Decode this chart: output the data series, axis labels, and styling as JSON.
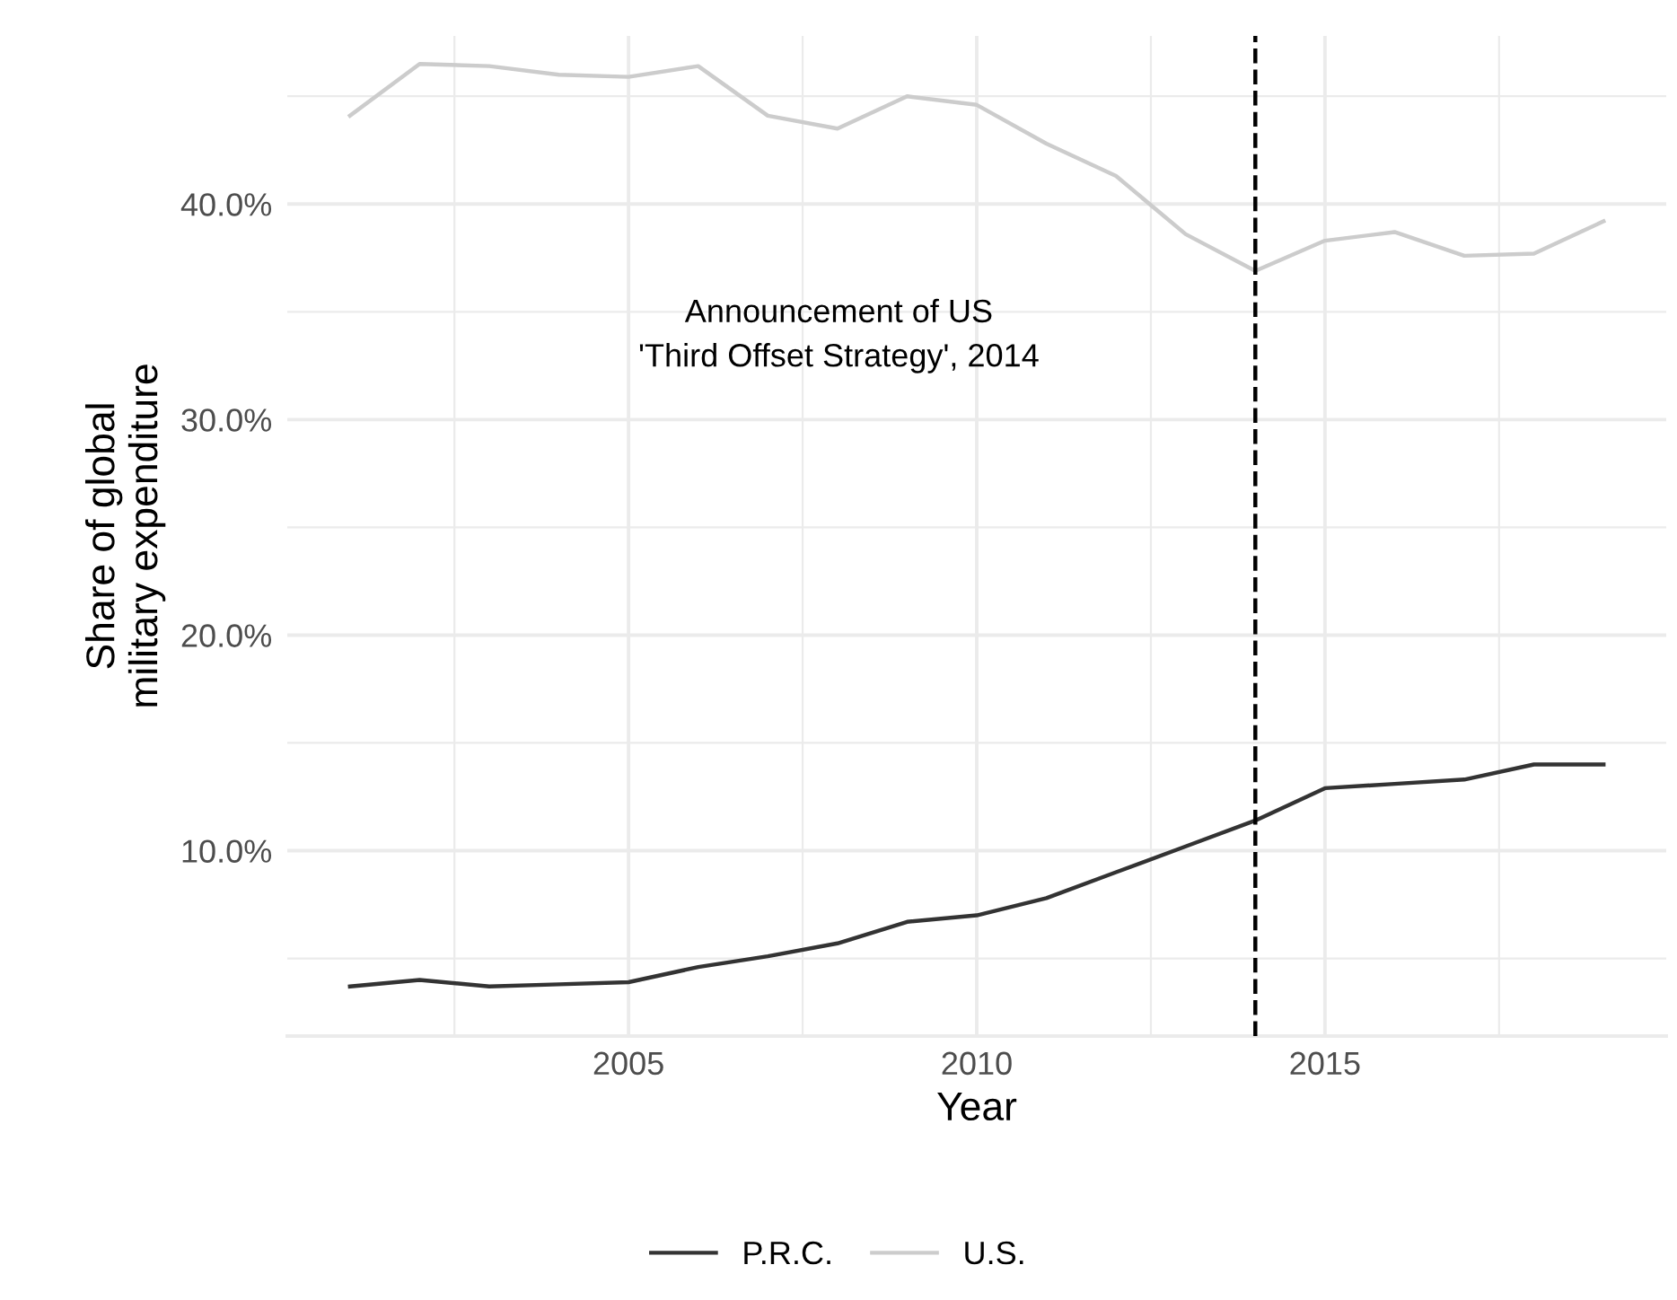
{
  "chart_data": {
    "type": "line",
    "xlabel": "Year",
    "ylabel": "Share of global\nmilitary expenditure",
    "x": [
      2001,
      2002,
      2003,
      2004,
      2005,
      2006,
      2007,
      2008,
      2009,
      2010,
      2011,
      2012,
      2013,
      2014,
      2015,
      2016,
      2017,
      2018,
      2019
    ],
    "series": [
      {
        "name": "P.R.C.",
        "color": "#333333",
        "values": [
          3.7,
          4.0,
          3.7,
          3.8,
          3.9,
          4.6,
          5.1,
          5.7,
          6.7,
          7.0,
          7.8,
          9.0,
          10.2,
          11.4,
          12.9,
          13.1,
          13.3,
          14.0,
          14.0
        ]
      },
      {
        "name": "U.S.",
        "color": "#cccccc",
        "values": [
          44.1,
          46.5,
          46.4,
          46.0,
          45.9,
          46.4,
          44.1,
          43.5,
          45.0,
          44.6,
          42.8,
          41.3,
          38.6,
          36.9,
          38.3,
          38.7,
          37.6,
          37.7,
          39.2
        ]
      }
    ],
    "xlim": [
      2000.1,
      2019.9
    ],
    "ylim": [
      1.4,
      47.8
    ],
    "xticks": [
      {
        "value": 2002.5,
        "label": null
      },
      2005,
      {
        "value": 2007.5,
        "label": null
      },
      2010,
      {
        "value": 2012.5,
        "label": null
      },
      2015,
      {
        "value": 2017.5,
        "label": null
      }
    ],
    "yticks": [
      {
        "value": 5,
        "label": null
      },
      {
        "value": 10,
        "label": "10.0%"
      },
      {
        "value": 15,
        "label": null
      },
      {
        "value": 20,
        "label": "20.0%"
      },
      {
        "value": 25,
        "label": null
      },
      {
        "value": 30,
        "label": "30.0%"
      },
      {
        "value": 35,
        "label": null
      },
      {
        "value": 40,
        "label": "40.0%"
      },
      {
        "value": 45,
        "label": null
      }
    ],
    "ref_lines": [
      {
        "axis": "x",
        "value": 2014,
        "color": "#000000",
        "line_style": "dashed"
      }
    ],
    "annotations": [
      "Announcement of US\n'Third Offset Strategy', 2014"
    ],
    "grid": true,
    "legend": "bottom",
    "line_style": "solid",
    "marker": "none"
  }
}
